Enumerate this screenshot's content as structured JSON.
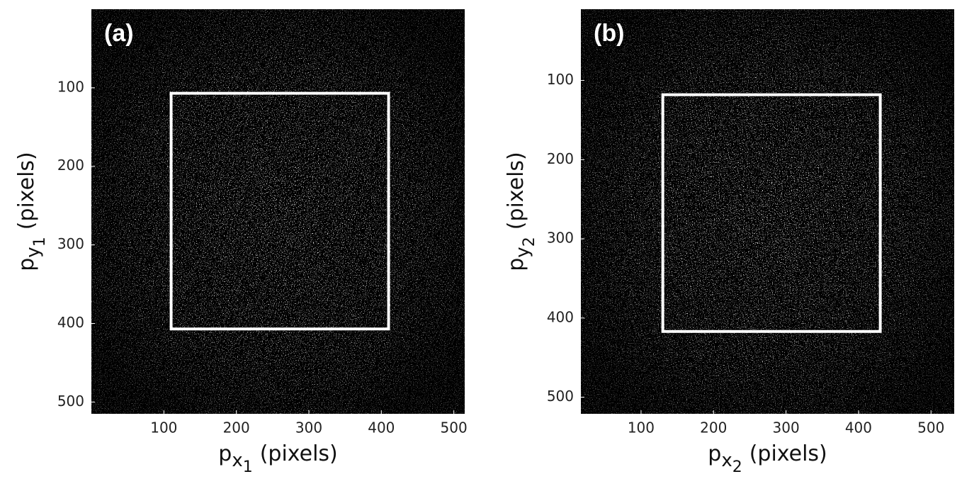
{
  "chart_data": [
    {
      "type": "image",
      "panel_label": "(a)",
      "xlabel": {
        "base": "p",
        "sub": "x",
        "subsub": "1",
        "unit": "(pixels)"
      },
      "ylabel": {
        "base": "p",
        "sub": "y",
        "subsub": "1",
        "unit": "(pixels)"
      },
      "xlim": [
        0,
        515
      ],
      "ylim": [
        0,
        515
      ],
      "y_inverted": true,
      "xticks": [
        100,
        200,
        300,
        400,
        500
      ],
      "yticks": [
        100,
        200,
        300,
        400,
        500
      ],
      "roi": {
        "x": [
          110,
          410
        ],
        "y": [
          107,
          407
        ],
        "color": "#ffffff"
      }
    },
    {
      "type": "image",
      "panel_label": "(b)",
      "xlabel": {
        "base": "p",
        "sub": "x",
        "subsub": "2",
        "unit": "(pixels)"
      },
      "ylabel": {
        "base": "p",
        "sub": "y",
        "subsub": "2",
        "unit": "(pixels)"
      },
      "xlim": [
        17,
        532
      ],
      "ylim": [
        10,
        521
      ],
      "y_inverted": true,
      "xticks": [
        100,
        200,
        300,
        400,
        500
      ],
      "yticks": [
        100,
        200,
        300,
        400,
        500
      ],
      "roi": {
        "x": [
          130,
          430
        ],
        "y": [
          118,
          417
        ],
        "color": "#ffffff"
      }
    }
  ]
}
